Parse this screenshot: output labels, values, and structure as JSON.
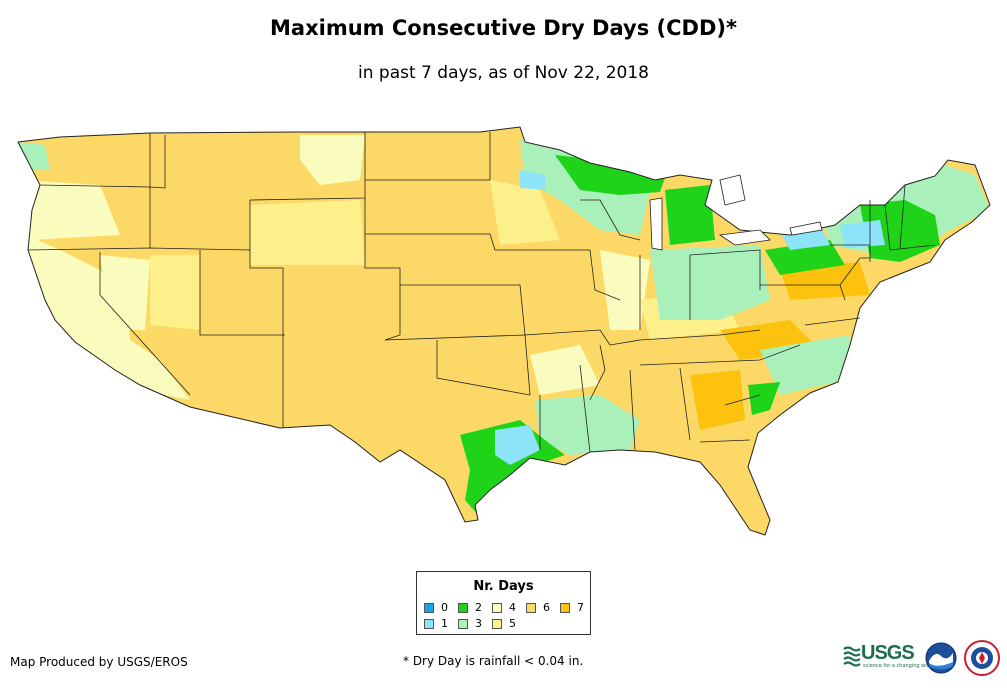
{
  "title": "Maximum Consecutive Dry Days (CDD)*",
  "subtitle": "in past 7 days, as of Nov 22, 2018",
  "legend": {
    "title": "Nr. Days",
    "items": [
      {
        "label": "0",
        "color": "#1aa3ec"
      },
      {
        "label": "1",
        "color": "#8de3f7"
      },
      {
        "label": "2",
        "color": "#1ed318"
      },
      {
        "label": "3",
        "color": "#a9f0bb"
      },
      {
        "label": "4",
        "color": "#fafcbe"
      },
      {
        "label": "5",
        "color": "#fdf08a"
      },
      {
        "label": "6",
        "color": "#fcd966"
      },
      {
        "label": "7",
        "color": "#fcc20d"
      }
    ]
  },
  "credit": "Map Produced by USGS/EROS",
  "footnote": "* Dry Day is rainfall < 0.04 in.",
  "logos": {
    "usgs_text": "USGS",
    "usgs_tagline": "science for a changing world",
    "noaa_text": "NOAA",
    "nws_text": "NATIONAL WEATHER SERVICE"
  }
}
